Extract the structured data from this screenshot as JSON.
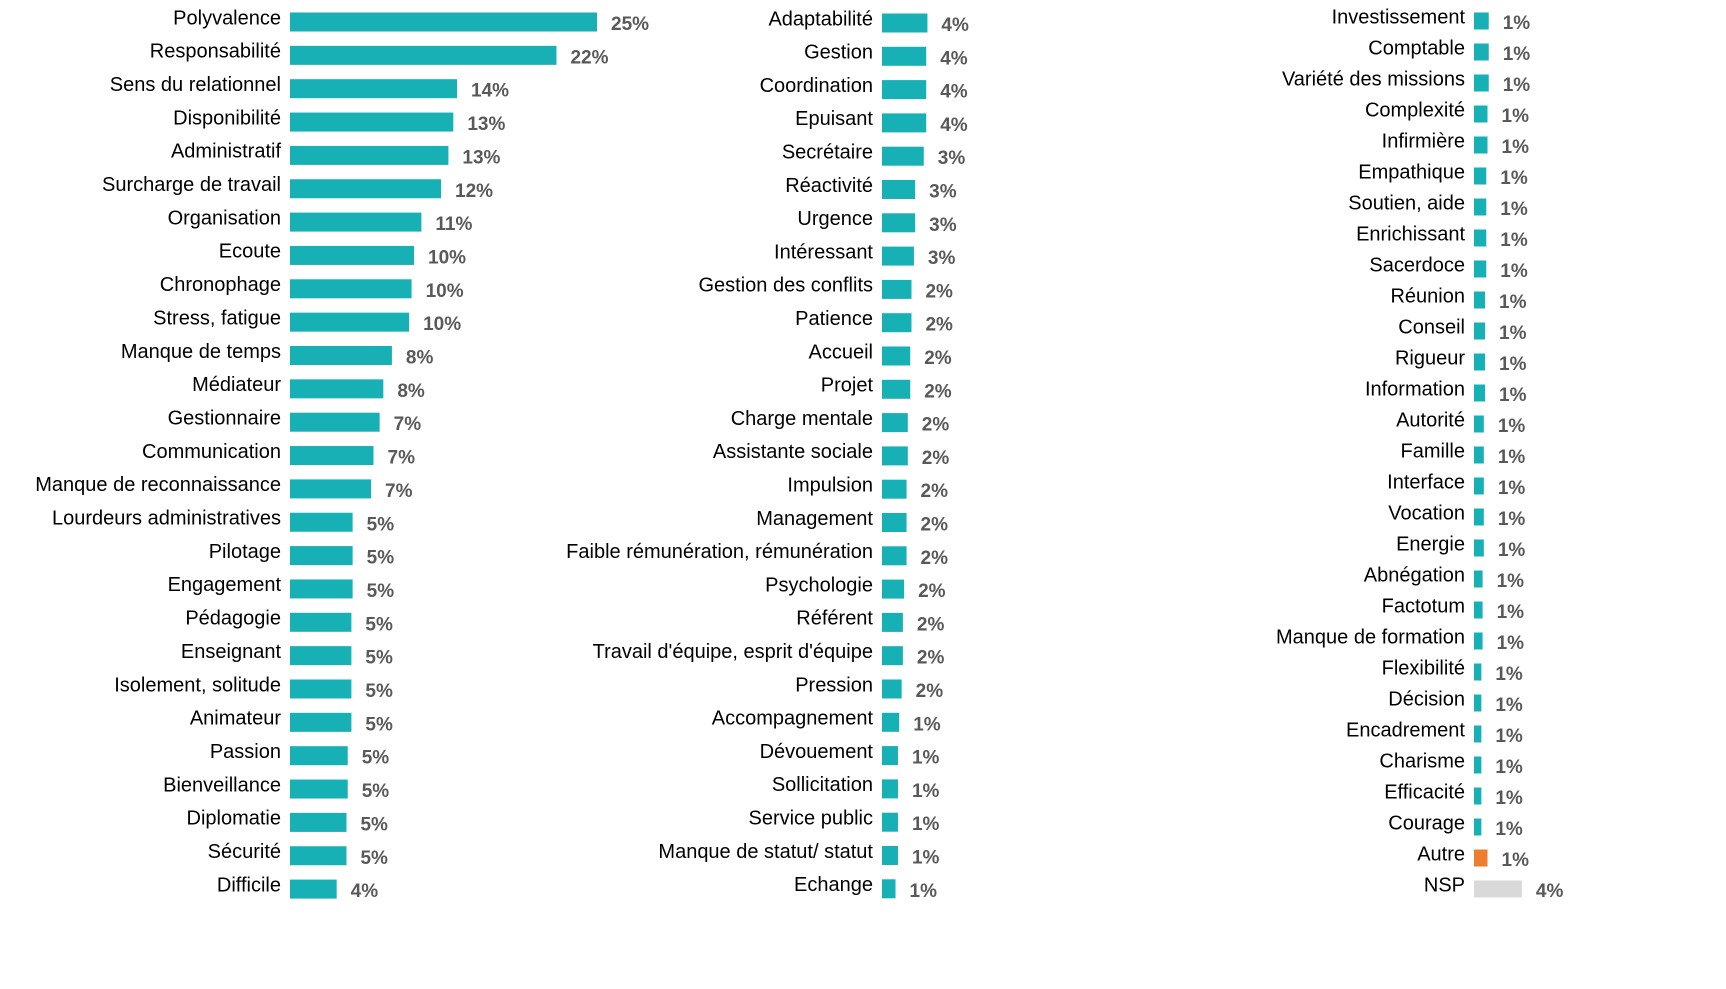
{
  "chart_data": [
    {
      "type": "bar",
      "orientation": "horizontal",
      "color": "#17b0b4",
      "xlim": [
        0,
        25
      ],
      "categories": [
        "Polyvalence",
        "Responsabilité",
        "Sens du relationnel",
        "Disponibilité",
        "Administratif",
        "Surcharge de travail",
        "Organisation",
        "Ecoute",
        "Chronophage",
        "Stress, fatigue",
        "Manque de temps",
        "Médiateur",
        "Gestionnaire",
        "Communication",
        "Manque de reconnaissance",
        "Lourdeurs administratives",
        "Pilotage",
        "Engagement",
        "Pédagogie",
        "Enseignant",
        "Isolement, solitude",
        "Animateur",
        "Passion",
        "Bienveillance",
        "Diplomatie",
        "Sécurité",
        "Difficile"
      ],
      "values": [
        25.0,
        21.7,
        13.6,
        13.3,
        12.9,
        12.3,
        10.7,
        10.1,
        9.9,
        9.7,
        8.3,
        7.6,
        7.3,
        6.8,
        6.6,
        5.1,
        5.1,
        5.1,
        5.0,
        5.0,
        5.0,
        5.0,
        4.7,
        4.7,
        4.6,
        4.6,
        3.8
      ],
      "value_labels": [
        "25%",
        "22%",
        "14%",
        "13%",
        "13%",
        "12%",
        "11%",
        "10%",
        "10%",
        "10%",
        "8%",
        "8%",
        "7%",
        "7%",
        "7%",
        "5%",
        "5%",
        "5%",
        "5%",
        "5%",
        "5%",
        "5%",
        "5%",
        "5%",
        "5%",
        "5%",
        "4%"
      ]
    },
    {
      "type": "bar",
      "orientation": "horizontal",
      "color": "#17b0b4",
      "xlim": [
        0,
        25
      ],
      "categories": [
        "Adaptabilité",
        "Gestion",
        "Coordination",
        "Epuisant",
        "Secrétaire",
        "Réactivité",
        "Urgence",
        "Intéressant",
        "Gestion des conflits",
        "Patience",
        "Accueil",
        "Projet",
        "Charge mentale",
        "Assistante sociale",
        "Impulsion",
        "Management",
        "Faible rémunération, rémunération",
        "Psychologie",
        "Référent",
        "Travail d'équipe, esprit d'équipe",
        "Pression",
        "Accompagnement",
        "Dévouement",
        "Sollicitation",
        "Service public",
        "Manque de statut/ statut",
        "Echange"
      ],
      "values": [
        3.7,
        3.6,
        3.6,
        3.6,
        3.4,
        2.7,
        2.7,
        2.6,
        2.4,
        2.4,
        2.3,
        2.3,
        2.1,
        2.1,
        2.0,
        2.0,
        2.0,
        1.8,
        1.7,
        1.7,
        1.6,
        1.4,
        1.3,
        1.3,
        1.3,
        1.3,
        1.1
      ],
      "value_labels": [
        "4%",
        "4%",
        "4%",
        "4%",
        "3%",
        "3%",
        "3%",
        "3%",
        "2%",
        "2%",
        "2%",
        "2%",
        "2%",
        "2%",
        "2%",
        "2%",
        "2%",
        "2%",
        "2%",
        "2%",
        "2%",
        "1%",
        "1%",
        "1%",
        "1%",
        "1%",
        "1%"
      ]
    },
    {
      "type": "bar",
      "orientation": "horizontal",
      "xlim": [
        0,
        25
      ],
      "categories": [
        "Investissement",
        "Comptable",
        "Variété des missions",
        "Complexité",
        "Infirmière",
        "Empathique",
        "Soutien, aide",
        "Enrichissant",
        "Sacerdoce",
        "Réunion",
        "Conseil",
        "Rigueur",
        "Information",
        "Autorité",
        "Famille",
        "Interface",
        "Vocation",
        "Energie",
        "Abnégation",
        "Factotum",
        "Manque de formation",
        "Flexibilité",
        "Décision",
        "Encadrement",
        "Charisme",
        "Efficacité",
        "Courage",
        "Autre",
        "NSP"
      ],
      "values": [
        1.2,
        1.2,
        1.2,
        1.1,
        1.1,
        1.0,
        1.0,
        1.0,
        1.0,
        0.9,
        0.9,
        0.9,
        0.9,
        0.8,
        0.8,
        0.8,
        0.8,
        0.8,
        0.7,
        0.7,
        0.7,
        0.6,
        0.6,
        0.6,
        0.6,
        0.6,
        0.6,
        1.1,
        3.9
      ],
      "value_labels": [
        "1%",
        "1%",
        "1%",
        "1%",
        "1%",
        "1%",
        "1%",
        "1%",
        "1%",
        "1%",
        "1%",
        "1%",
        "1%",
        "1%",
        "1%",
        "1%",
        "1%",
        "1%",
        "1%",
        "1%",
        "1%",
        "1%",
        "1%",
        "1%",
        "1%",
        "1%",
        "1%",
        "1%",
        "4%"
      ],
      "colors": [
        "#17b0b4",
        "#17b0b4",
        "#17b0b4",
        "#17b0b4",
        "#17b0b4",
        "#17b0b4",
        "#17b0b4",
        "#17b0b4",
        "#17b0b4",
        "#17b0b4",
        "#17b0b4",
        "#17b0b4",
        "#17b0b4",
        "#17b0b4",
        "#17b0b4",
        "#17b0b4",
        "#17b0b4",
        "#17b0b4",
        "#17b0b4",
        "#17b0b4",
        "#17b0b4",
        "#17b0b4",
        "#17b0b4",
        "#17b0b4",
        "#17b0b4",
        "#17b0b4",
        "#17b0b4",
        "#ed7d31",
        "#d9d9d9"
      ]
    }
  ]
}
